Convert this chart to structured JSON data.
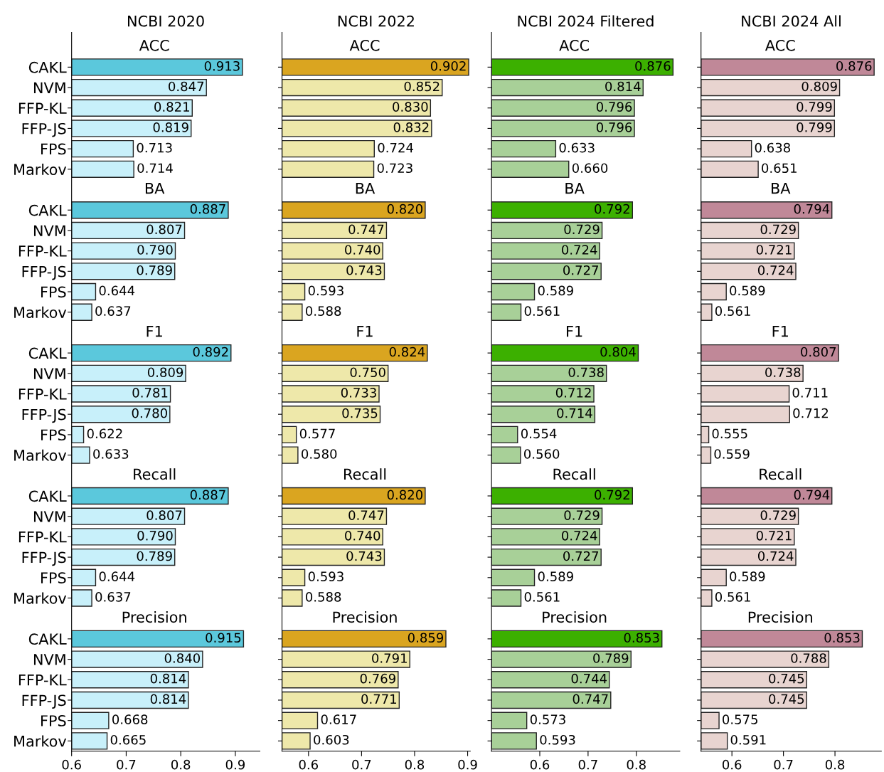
{
  "chart_data": [
    {
      "type": "bar",
      "orientation": "horizontal",
      "title": "NCBI 2020",
      "annotations": [
        "ACC",
        "BA",
        "F1",
        "Recall",
        "Precision"
      ],
      "categories": [
        null,
        "CAKL",
        "NVM",
        "FFP-KL",
        "FFP-JS",
        "FPS",
        "Markov",
        null,
        "CAKL",
        "NVM",
        "FFP-KL",
        "FFP-JS",
        "FPS",
        "Markov",
        null,
        "CAKL",
        "NVM",
        "FFP-KL",
        "FFP-JS",
        "FPS",
        "Markov",
        null,
        "CAKL",
        "NVM",
        "FFP-KL",
        "FFP-JS",
        "FPS",
        "Markov",
        null,
        "CAKL",
        "NVM",
        "FFP-KL",
        "FFP-JS",
        "FPS",
        "Markov"
      ],
      "values": [
        null,
        0.913,
        0.847,
        0.821,
        0.819,
        0.713,
        0.714,
        null,
        0.887,
        0.807,
        0.79,
        0.789,
        0.644,
        0.637,
        null,
        0.892,
        0.809,
        0.781,
        0.78,
        0.622,
        0.633,
        null,
        0.887,
        0.807,
        0.79,
        0.789,
        0.644,
        0.637,
        null,
        0.915,
        0.84,
        0.814,
        0.814,
        0.668,
        0.665
      ],
      "value_labels": [
        null,
        "0.913",
        "0.847",
        "0.821",
        "0.819",
        "0.713",
        "0.714",
        null,
        "0.887",
        "0.807",
        "0.790",
        "0.789",
        "0.644",
        "0.637",
        null,
        "0.892",
        "0.809",
        "0.781",
        "0.780",
        "0.622",
        "0.633",
        null,
        "0.887",
        "0.807",
        "0.790",
        "0.789",
        "0.644",
        "0.637",
        null,
        "0.915",
        "0.840",
        "0.814",
        "0.814",
        "0.668",
        "0.665"
      ],
      "colors": [
        null,
        "#5bc8dc",
        "#c8f0fa",
        "#c8f0fa",
        "#c8f0fa",
        "#c8f0fa",
        "#c8f0fa",
        null,
        "#5bc8dc",
        "#c8f0fa",
        "#c8f0fa",
        "#c8f0fa",
        "#c8f0fa",
        "#c8f0fa",
        null,
        "#5bc8dc",
        "#c8f0fa",
        "#c8f0fa",
        "#c8f0fa",
        "#c8f0fa",
        "#c8f0fa",
        null,
        "#5bc8dc",
        "#c8f0fa",
        "#c8f0fa",
        "#c8f0fa",
        "#c8f0fa",
        "#c8f0fa",
        null,
        "#5bc8dc",
        "#c8f0fa",
        "#c8f0fa",
        "#c8f0fa",
        "#c8f0fa",
        "#c8f0fa"
      ],
      "xlim": [
        0.6,
        0.945
      ],
      "xticks": [
        0.6,
        0.7,
        0.8,
        0.9
      ]
    },
    {
      "type": "bar",
      "orientation": "horizontal",
      "title": "NCBI 2022",
      "annotations": [
        "ACC",
        "BA",
        "F1",
        "Recall",
        "Precision"
      ],
      "categories": [
        null,
        null,
        null,
        null,
        null,
        null,
        null,
        null,
        null,
        null,
        null,
        null,
        null,
        null,
        null,
        null,
        null,
        null,
        null,
        null,
        null,
        null,
        null,
        null,
        null,
        null,
        null,
        null,
        null,
        null,
        null,
        null,
        null,
        null,
        null
      ],
      "values": [
        null,
        0.902,
        0.852,
        0.83,
        0.832,
        0.724,
        0.723,
        null,
        0.82,
        0.747,
        0.74,
        0.743,
        0.593,
        0.588,
        null,
        0.824,
        0.75,
        0.733,
        0.735,
        0.577,
        0.58,
        null,
        0.82,
        0.747,
        0.74,
        0.743,
        0.593,
        0.588,
        null,
        0.859,
        0.791,
        0.769,
        0.771,
        0.617,
        0.603
      ],
      "value_labels": [
        null,
        "0.902",
        "0.852",
        "0.830",
        "0.832",
        "0.724",
        "0.723",
        null,
        "0.820",
        "0.747",
        "0.740",
        "0.743",
        "0.593",
        "0.588",
        null,
        "0.824",
        "0.750",
        "0.733",
        "0.735",
        "0.577",
        "0.580",
        null,
        "0.820",
        "0.747",
        "0.740",
        "0.743",
        "0.593",
        "0.588",
        null,
        "0.859",
        "0.791",
        "0.769",
        "0.771",
        "0.617",
        "0.603"
      ],
      "colors": [
        null,
        "#daa520",
        "#eee8aa",
        "#eee8aa",
        "#eee8aa",
        "#eee8aa",
        "#eee8aa",
        null,
        "#daa520",
        "#eee8aa",
        "#eee8aa",
        "#eee8aa",
        "#eee8aa",
        "#eee8aa",
        null,
        "#daa520",
        "#eee8aa",
        "#eee8aa",
        "#eee8aa",
        "#eee8aa",
        "#eee8aa",
        null,
        "#daa520",
        "#eee8aa",
        "#eee8aa",
        "#eee8aa",
        "#eee8aa",
        "#eee8aa",
        null,
        "#daa520",
        "#eee8aa",
        "#eee8aa",
        "#eee8aa",
        "#eee8aa",
        "#eee8aa"
      ],
      "xlim": [
        0.55,
        0.905
      ],
      "xticks": [
        0.6,
        0.7,
        0.8,
        0.9
      ],
      "tick_labels": "x"
    },
    {
      "type": "bar",
      "orientation": "horizontal",
      "title": "NCBI 2024 Filtered",
      "annotations": [
        "ACC",
        "BA",
        "F1",
        "Recall",
        "Precision"
      ],
      "categories": [
        null,
        null,
        null,
        null,
        null,
        null,
        null,
        null,
        null,
        null,
        null,
        null,
        null,
        null,
        null,
        null,
        null,
        null,
        null,
        null,
        null,
        null,
        null,
        null,
        null,
        null,
        null,
        null,
        null,
        null,
        null,
        null,
        null,
        null,
        null
      ],
      "values": [
        null,
        0.876,
        0.814,
        0.796,
        0.796,
        0.633,
        0.66,
        null,
        0.792,
        0.729,
        0.724,
        0.727,
        0.589,
        0.561,
        null,
        0.804,
        0.738,
        0.712,
        0.714,
        0.554,
        0.56,
        null,
        0.792,
        0.729,
        0.724,
        0.727,
        0.589,
        0.561,
        null,
        0.853,
        0.789,
        0.744,
        0.747,
        0.573,
        0.593
      ],
      "value_labels": [
        null,
        "0.876",
        "0.814",
        "0.796",
        "0.796",
        "0.633",
        "0.660",
        null,
        "0.792",
        "0.729",
        "0.724",
        "0.727",
        "0.589",
        "0.561",
        null,
        "0.804",
        "0.738",
        "0.712",
        "0.714",
        "0.554",
        "0.560",
        null,
        "0.792",
        "0.729",
        "0.724",
        "0.727",
        "0.589",
        "0.561",
        null,
        "0.853",
        "0.789",
        "0.744",
        "0.747",
        "0.573",
        "0.593"
      ],
      "colors": [
        null,
        "#3cb000",
        "#a8d098",
        "#a8d098",
        "#a8d098",
        "#a8d098",
        "#a8d098",
        null,
        "#3cb000",
        "#a8d098",
        "#a8d098",
        "#a8d098",
        "#a8d098",
        "#a8d098",
        null,
        "#3cb000",
        "#a8d098",
        "#a8d098",
        "#a8d098",
        "#a8d098",
        "#a8d098",
        null,
        "#3cb000",
        "#a8d098",
        "#a8d098",
        "#a8d098",
        "#a8d098",
        "#a8d098",
        null,
        "#3cb000",
        "#a8d098",
        "#a8d098",
        "#a8d098",
        "#a8d098",
        "#a8d098"
      ],
      "xlim": [
        0.5,
        0.89
      ],
      "xticks": [
        0.6,
        0.7,
        0.8
      ],
      "tick_labels": "x"
    },
    {
      "type": "bar",
      "orientation": "horizontal",
      "title": "NCBI 2024 All",
      "annotations": [
        "ACC",
        "BA",
        "F1",
        "Recall",
        "Precision"
      ],
      "categories": [
        null,
        null,
        null,
        null,
        null,
        null,
        null,
        null,
        null,
        null,
        null,
        null,
        null,
        null,
        null,
        null,
        null,
        null,
        null,
        null,
        null,
        null,
        null,
        null,
        null,
        null,
        null,
        null,
        null,
        null,
        null,
        null,
        null,
        null,
        null
      ],
      "values": [
        null,
        0.876,
        0.809,
        0.799,
        0.799,
        0.638,
        0.651,
        null,
        0.794,
        0.729,
        0.721,
        0.724,
        0.589,
        0.561,
        null,
        0.807,
        0.738,
        0.711,
        0.712,
        0.555,
        0.559,
        null,
        0.794,
        0.729,
        0.721,
        0.724,
        0.589,
        0.561,
        null,
        0.853,
        0.788,
        0.745,
        0.745,
        0.575,
        0.591
      ],
      "value_labels": [
        null,
        "0.876",
        "0.809",
        "0.799",
        "0.799",
        "0.638",
        "0.651",
        null,
        "0.794",
        "0.729",
        "0.721",
        "0.724",
        "0.589",
        "0.561",
        null,
        "0.807",
        "0.738",
        "0.711",
        "0.712",
        "0.555",
        "0.559",
        null,
        "0.794",
        "0.729",
        "0.721",
        "0.724",
        "0.589",
        "0.561",
        null,
        "0.853",
        "0.788",
        "0.745",
        "0.745",
        "0.575",
        "0.591"
      ],
      "colors": [
        null,
        "#c08898",
        "#e8d4d0",
        "#e8d4d0",
        "#e8d4d0",
        "#e8d4d0",
        "#e8d4d0",
        null,
        "#c08898",
        "#e8d4d0",
        "#e8d4d0",
        "#e8d4d0",
        "#e8d4d0",
        "#e8d4d0",
        null,
        "#c08898",
        "#e8d4d0",
        "#e8d4d0",
        "#e8d4d0",
        "#e8d4d0",
        "#e8d4d0",
        null,
        "#c08898",
        "#e8d4d0",
        "#e8d4d0",
        "#e8d4d0",
        "#e8d4d0",
        "#e8d4d0",
        null,
        "#c08898",
        "#e8d4d0",
        "#e8d4d0",
        "#e8d4d0",
        "#e8d4d0",
        "#e8d4d0"
      ],
      "xlim": [
        0.54,
        0.89
      ],
      "xticks": [
        0.6,
        0.7,
        0.8
      ],
      "tick_labels": "x"
    }
  ]
}
